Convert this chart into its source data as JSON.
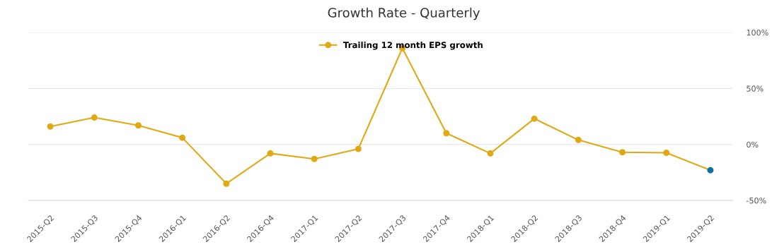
{
  "chart_data": {
    "type": "line",
    "title": "Growth Rate - Quarterly",
    "categories": [
      "2015-Q2",
      "2015-Q3",
      "2015-Q4",
      "2016-Q1",
      "2016-Q2",
      "2016-Q4",
      "2017-Q1",
      "2017-Q2",
      "2017-Q3",
      "2017-Q4",
      "2018-Q1",
      "2018-Q2",
      "2018-Q3",
      "2018-Q4",
      "2019-Q1",
      "2019-Q2"
    ],
    "series": [
      {
        "name": "Trailing 12 month EPS growth",
        "color": "#e0a914",
        "colors": [
          "#e0a914",
          "#e0a914",
          "#e0a914",
          "#e0a914",
          "#e0a914",
          "#e0a914",
          "#e0a914",
          "#e0a914",
          "#e0a914",
          "#e0a914",
          "#e0a914",
          "#e0a914",
          "#e0a914",
          "#e0a914",
          "#e0a914",
          "#0e6fa3"
        ],
        "values": [
          16,
          24,
          17,
          6,
          -35,
          -8,
          -13,
          -4,
          86,
          10,
          -8,
          23,
          4,
          -7,
          -7.5,
          -23
        ]
      }
    ],
    "ylim": [
      -50,
      100
    ],
    "yticks": [
      {
        "value": -50,
        "label": "-50%"
      },
      {
        "value": 0,
        "label": "0%"
      },
      {
        "value": 50,
        "label": "50%"
      },
      {
        "value": 100,
        "label": "100%"
      }
    ],
    "grid": "y",
    "legend": "top",
    "marker": "circle",
    "line_style": "solid"
  }
}
